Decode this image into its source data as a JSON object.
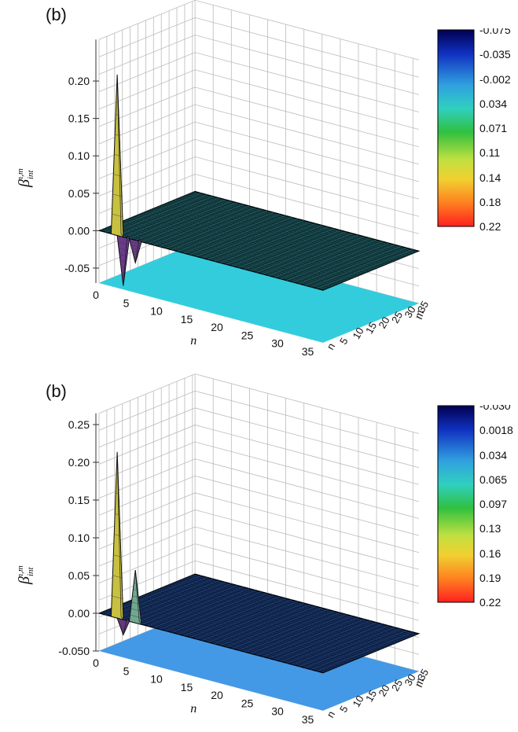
{
  "chart_data": [
    {
      "type": "surface3d",
      "panel_label": "(b)",
      "zlabel": "β",
      "zlabel_sup": "n,m",
      "zlabel_sub": "int",
      "xlabel": "n",
      "ylabel": "m",
      "xticks": [
        "0",
        "5",
        "10",
        "15",
        "20",
        "25",
        "30",
        "35"
      ],
      "yticks": [
        "n",
        "5",
        "10",
        "15",
        "20",
        "25",
        "30",
        "35"
      ],
      "zticks": [
        "-0.05",
        "0.00",
        "0.05",
        "0.10",
        "0.15",
        "0.20"
      ],
      "zlim": [
        -0.07,
        0.24
      ],
      "peaks": [
        {
          "n": 3,
          "m": 0,
          "z": 0.215
        },
        {
          "n": 4,
          "m": 0,
          "z": -0.065
        },
        {
          "n": 6,
          "m": 0,
          "z": -0.03
        }
      ],
      "plateau_z": 0.0,
      "floor_color": "#33ccdd",
      "colorbar": [
        "-0.075",
        "-0.035",
        "-0.002",
        "0.034",
        "0.071",
        "0.11",
        "0.14",
        "0.18",
        "0.22"
      ]
    },
    {
      "type": "surface3d",
      "panel_label": "(b)",
      "zlabel": "β",
      "zlabel_sup": "n,m",
      "zlabel_sub": "int",
      "xlabel": "n",
      "ylabel": "m",
      "xticks": [
        "0",
        "5",
        "10",
        "15",
        "20",
        "25",
        "30",
        "35"
      ],
      "yticks": [
        "n",
        "5",
        "10",
        "15",
        "20",
        "25",
        "30",
        "35"
      ],
      "zticks": [
        "-0.050",
        "0.00",
        "0.05",
        "0.10",
        "0.15",
        "0.20",
        "0.25"
      ],
      "zlim": [
        -0.05,
        0.25
      ],
      "peaks": [
        {
          "n": 3,
          "m": 0,
          "z": 0.22
        },
        {
          "n": 6,
          "m": 0,
          "z": 0.07
        },
        {
          "n": 4,
          "m": 0,
          "z": -0.02
        }
      ],
      "plateau_z": 0.0,
      "floor_color": "#4499e6",
      "colorbar": [
        "-0.030",
        "0.0018",
        "0.034",
        "0.065",
        "0.097",
        "0.13",
        "0.16",
        "0.19",
        "0.22"
      ]
    }
  ]
}
